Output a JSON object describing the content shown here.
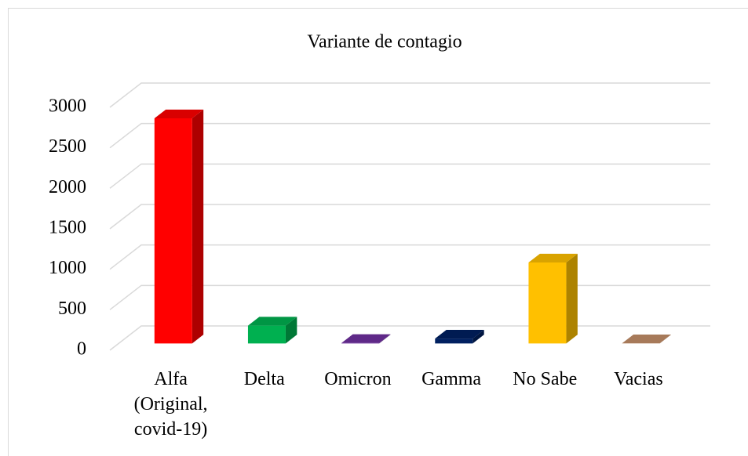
{
  "chart_data": {
    "type": "bar3d",
    "title": "Variante de contagio",
    "categories": [
      "Alfa (Original, covid-19)",
      "Delta",
      "Omicron",
      "Gamma",
      "No Sabe",
      "Vacias"
    ],
    "values": [
      2780,
      220,
      5,
      60,
      1000,
      2
    ],
    "colors": [
      "#ff0000",
      "#00b050",
      "#7030a0",
      "#002060",
      "#ffc000",
      "#c5906a"
    ],
    "ylim": [
      0,
      3000
    ],
    "yticks": [
      0,
      500,
      1000,
      1500,
      2000,
      2500,
      3000
    ],
    "grid": true
  }
}
